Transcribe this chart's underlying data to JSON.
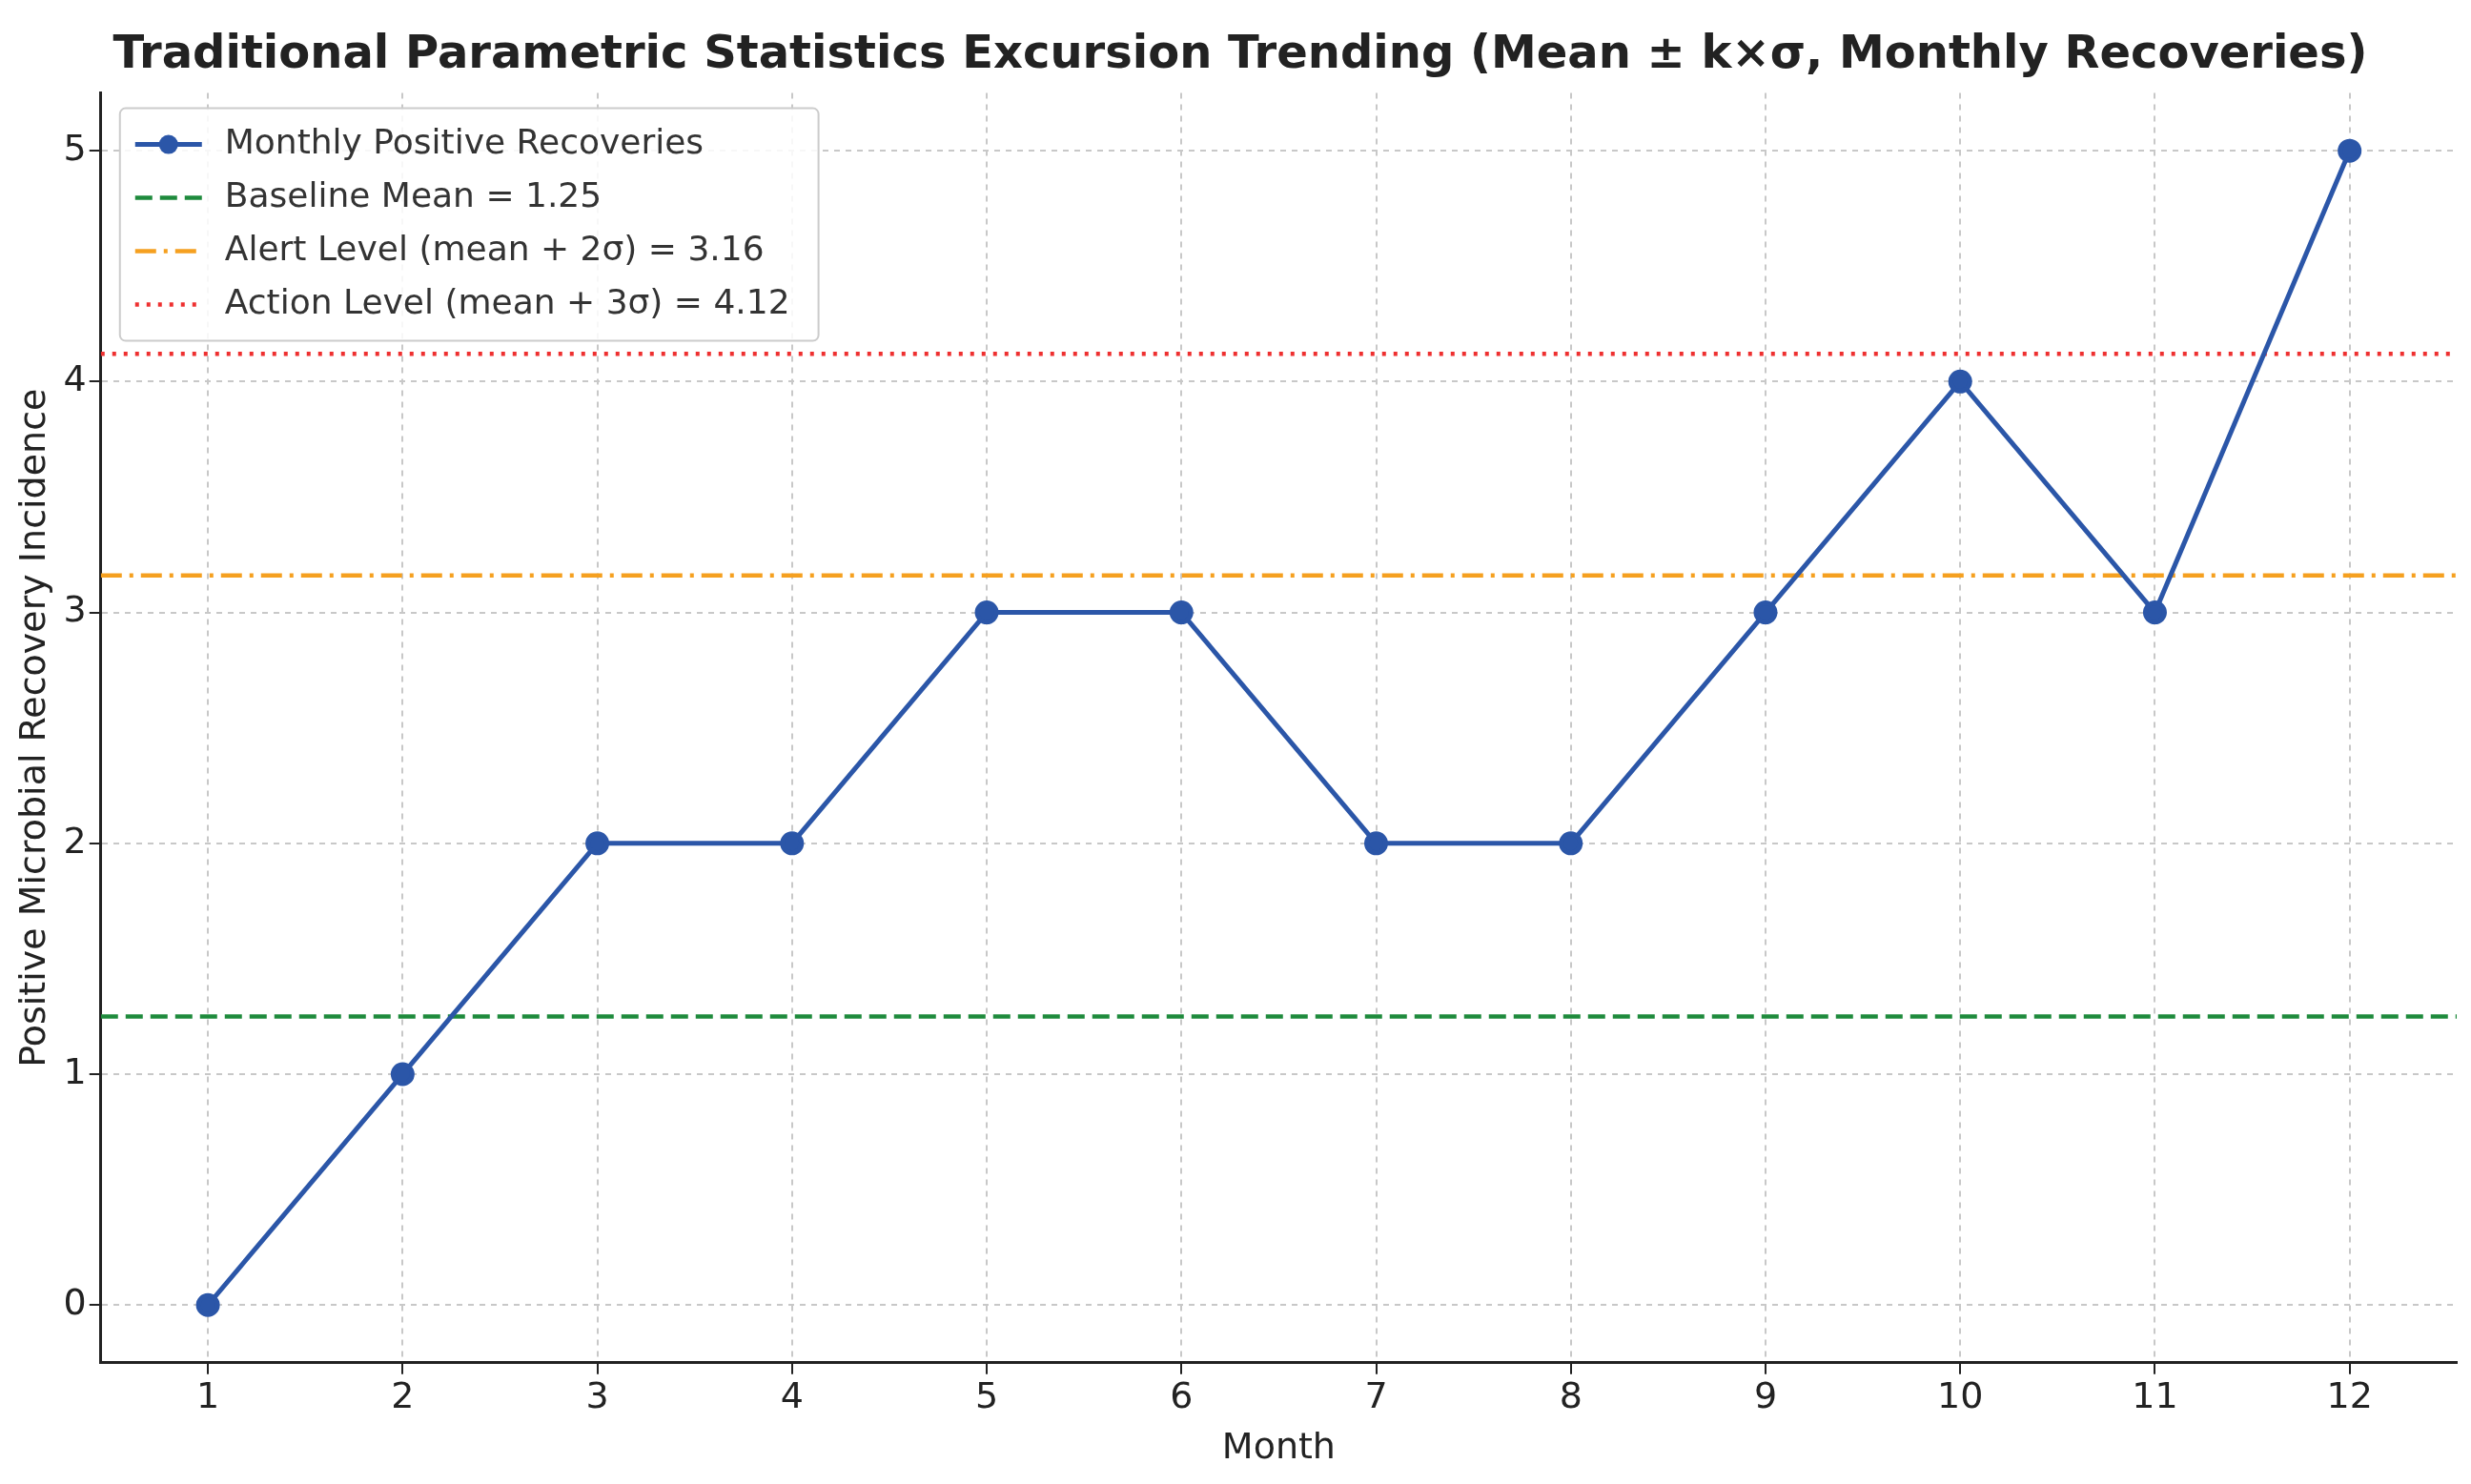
{
  "chart_data": {
    "type": "line",
    "title": "Traditional Parametric Statistics Excursion Trending (Mean ± k×σ, Monthly Recoveries)",
    "xlabel": "Month",
    "ylabel": "Positive Microbial Recovery Incidence",
    "x": [
      1,
      2,
      3,
      4,
      5,
      6,
      7,
      8,
      9,
      10,
      11,
      12
    ],
    "series": [
      {
        "name": "Monthly Positive Recoveries",
        "color": "#2b56a8",
        "values": [
          0,
          1,
          2,
          2,
          3,
          3,
          2,
          2,
          3,
          4,
          3,
          5
        ]
      }
    ],
    "ref_lines": [
      {
        "axis": "y",
        "value": 1.25,
        "label": "Baseline Mean = 1.25",
        "color": "#1e8a3c",
        "line_style": "dashed"
      },
      {
        "axis": "y",
        "value": 3.16,
        "label": "Alert Level (mean + 2σ) = 3.16",
        "color": "#f5a020",
        "line_style": "dashdot"
      },
      {
        "axis": "y",
        "value": 4.12,
        "label": "Action Level (mean + 3σ) = 4.12",
        "color": "#ee3030",
        "line_style": "dotted"
      }
    ],
    "xlim": [
      0.45,
      12.55
    ],
    "xticks": [
      1,
      2,
      3,
      4,
      5,
      6,
      7,
      8,
      9,
      10,
      11,
      12
    ],
    "ylim": [
      -0.25,
      5.25
    ],
    "yticks": [
      0,
      1,
      2,
      3,
      4,
      5
    ],
    "grid": true,
    "legend": "top left",
    "marker": "circle",
    "line_style": "solid"
  }
}
